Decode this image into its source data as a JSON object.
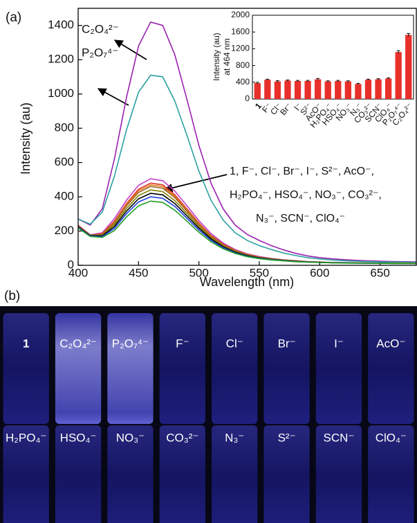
{
  "chart_data": [
    {
      "type": "line",
      "panel_label": "(a)",
      "xlabel": "Wavelength (nm)",
      "ylabel": "Intensity (au)",
      "x": [
        400,
        410,
        420,
        430,
        440,
        450,
        460,
        470,
        480,
        490,
        500,
        510,
        520,
        530,
        540,
        550,
        560,
        570,
        580,
        590,
        600,
        610,
        620,
        630,
        640,
        650,
        660,
        670,
        680
      ],
      "xlim": [
        400,
        680
      ],
      "ylim": [
        0,
        1500
      ],
      "xticks": [
        400,
        450,
        500,
        550,
        600,
        650
      ],
      "yticks": [
        0,
        200,
        400,
        600,
        800,
        1000,
        1200,
        1400
      ],
      "series": [
        {
          "color": "#9a20b0",
          "values": [
            270,
            235,
            330,
            620,
            980,
            1280,
            1420,
            1400,
            1230,
            970,
            700,
            480,
            330,
            235,
            180,
            145,
            115,
            90,
            70,
            55,
            45,
            38,
            33,
            29,
            26,
            24,
            22,
            21,
            20
          ]
        },
        {
          "color": "#2aa0a0",
          "values": [
            270,
            240,
            310,
            520,
            790,
            1010,
            1110,
            1100,
            960,
            760,
            550,
            380,
            265,
            190,
            145,
            115,
            92,
            72,
            57,
            45,
            37,
            31,
            27,
            24,
            22,
            20,
            19,
            18,
            17
          ]
        },
        {
          "color": "#c040c8",
          "values": [
            235,
            178,
            190,
            272,
            380,
            467,
            505,
            494,
            434,
            348,
            261,
            185,
            130,
            92,
            67,
            51,
            40,
            32,
            27,
            22,
            19,
            17,
            16,
            15,
            14,
            13,
            13,
            12,
            12
          ]
        },
        {
          "color": "#e03030",
          "values": [
            232,
            176,
            185,
            258,
            361,
            444,
            480,
            470,
            413,
            330,
            248,
            175,
            124,
            88,
            64,
            48,
            38,
            31,
            26,
            21,
            18,
            16,
            15,
            14,
            13,
            13,
            12,
            12,
            12
          ]
        },
        {
          "color": "#e08020",
          "values": [
            231,
            176,
            182,
            253,
            354,
            435,
            470,
            460,
            404,
            324,
            243,
            172,
            121,
            86,
            63,
            47,
            37,
            30,
            25,
            21,
            18,
            16,
            15,
            14,
            13,
            13,
            12,
            12,
            12
          ]
        },
        {
          "color": "#a06020",
          "values": [
            229,
            175,
            179,
            247,
            346,
            425,
            460,
            450,
            396,
            316,
            237,
            168,
            119,
            84,
            61,
            46,
            37,
            30,
            25,
            21,
            18,
            16,
            15,
            14,
            13,
            13,
            12,
            12,
            12
          ]
        },
        {
          "color": "#808000",
          "values": [
            227,
            174,
            176,
            237,
            331,
            407,
            440,
            430,
            378,
            303,
            227,
            161,
            114,
            80,
            59,
            45,
            36,
            29,
            24,
            20,
            17,
            16,
            15,
            14,
            13,
            12,
            12,
            12,
            11
          ]
        },
        {
          "color": "#000000",
          "values": [
            225,
            173,
            172,
            226,
            316,
            388,
            420,
            411,
            361,
            289,
            217,
            154,
            108,
            77,
            56,
            43,
            34,
            28,
            23,
            19,
            17,
            15,
            14,
            13,
            12,
            12,
            11,
            11,
            11
          ]
        },
        {
          "color": "#2040e0",
          "values": [
            222,
            171,
            168,
            215,
            301,
            370,
            400,
            391,
            344,
            275,
            206,
            146,
            103,
            73,
            53,
            41,
            33,
            27,
            22,
            19,
            16,
            15,
            14,
            13,
            12,
            12,
            11,
            11,
            11
          ]
        },
        {
          "color": "#20a020",
          "values": [
            218,
            168,
            163,
            202,
            282,
            347,
            375,
            367,
            322,
            258,
            193,
            137,
            97,
            69,
            50,
            39,
            31,
            26,
            21,
            18,
            16,
            14,
            13,
            12,
            12,
            11,
            11,
            11,
            10
          ]
        }
      ],
      "annotations": [
        "C₂O₄²⁻",
        "P₂O₇⁴⁻",
        [
          "1, F⁻, Cl⁻, Br⁻, I⁻, S²⁻, AcO⁻,",
          "H₂PO₄⁻, HSO₄⁻, NO₃⁻, CO₃²⁻,",
          "N₃⁻, SCN⁻, ClO₄⁻"
        ]
      ]
    },
    {
      "type": "bar",
      "ylabel": [
        "Intensity (au)",
        "at 464 nm"
      ],
      "categories": [
        "1",
        "F⁻",
        "Cl⁻",
        "Br⁻",
        "I⁻",
        "S²⁻",
        "AcO⁻",
        "H₂PO₄⁻",
        "HSO₄⁻",
        "NO₃⁻",
        "N₃⁻",
        "CO₃²⁻",
        "SCN⁻",
        "ClO₄⁻",
        "P₂O₇⁴⁻",
        "C₂O₄²⁻"
      ],
      "values": [
        380,
        460,
        420,
        440,
        430,
        430,
        470,
        420,
        430,
        420,
        360,
        460,
        470,
        490,
        1120,
        1530
      ],
      "errors": [
        20,
        15,
        20,
        15,
        15,
        15,
        20,
        15,
        15,
        15,
        15,
        15,
        15,
        15,
        35,
        35
      ],
      "color": "#e8302a",
      "ylim": [
        0,
        2000
      ],
      "yticks": [
        0,
        400,
        800,
        1200,
        1600,
        2000
      ]
    }
  ],
  "photo": {
    "panel_label": "(b)",
    "row1": [
      "1",
      "C₂O₄²⁻",
      "P₂O₇⁴⁻",
      "F⁻",
      "Cl⁻",
      "Br⁻",
      "I⁻",
      "AcO⁻"
    ],
    "row2": [
      "H₂PO₄⁻",
      "HSO₄⁻",
      "NO₃⁻",
      "CO₃²⁻",
      "N₃⁻",
      "S²⁻",
      "SCN⁻",
      "ClO₄⁻"
    ]
  }
}
